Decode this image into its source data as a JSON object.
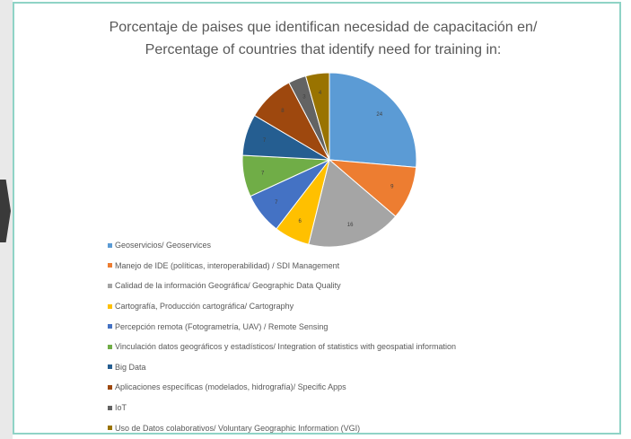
{
  "chart_data": {
    "type": "pie",
    "title_line1": "Porcentaje de paises que identifican necesidad de capacitación en/",
    "title_line2": "Percentage of countries that identify need for training in:",
    "legend_position": "bottom-left",
    "slices": [
      {
        "label": "Geoservicios/ Geoservices",
        "value": 24,
        "color": "#5b9bd5"
      },
      {
        "label": "Manejo de IDE (políticas, interoperabilidad) / SDI Management",
        "value": 9,
        "color": "#ed7d31"
      },
      {
        "label": "Calidad de la información Geográfica/ Geographic Data Quality",
        "value": 16,
        "color": "#a5a5a5"
      },
      {
        "label": "Cartografía, Producción cartográfica/ Cartography",
        "value": 6,
        "color": "#ffc000"
      },
      {
        "label": "Percepción remota (Fotogrametría, UAV) / Remote Sensing",
        "value": 7,
        "color": "#4472c4"
      },
      {
        "label": "Vinculación datos geográficos y estadísticos/ Integration of statistics with geospatial information",
        "value": 7,
        "color": "#70ad47"
      },
      {
        "label": "Big Data",
        "value": 7,
        "color": "#255e91"
      },
      {
        "label": "Aplicaciones específicas (modelados, hidrografía)/ Specific Apps",
        "value": 8,
        "color": "#9e480e"
      },
      {
        "label": "IoT",
        "value": 3,
        "color": "#636363"
      },
      {
        "label": "Uso de Datos colaborativos/ Voluntary Geographic Information (VGI)",
        "value": 4,
        "color": "#997300"
      }
    ]
  }
}
